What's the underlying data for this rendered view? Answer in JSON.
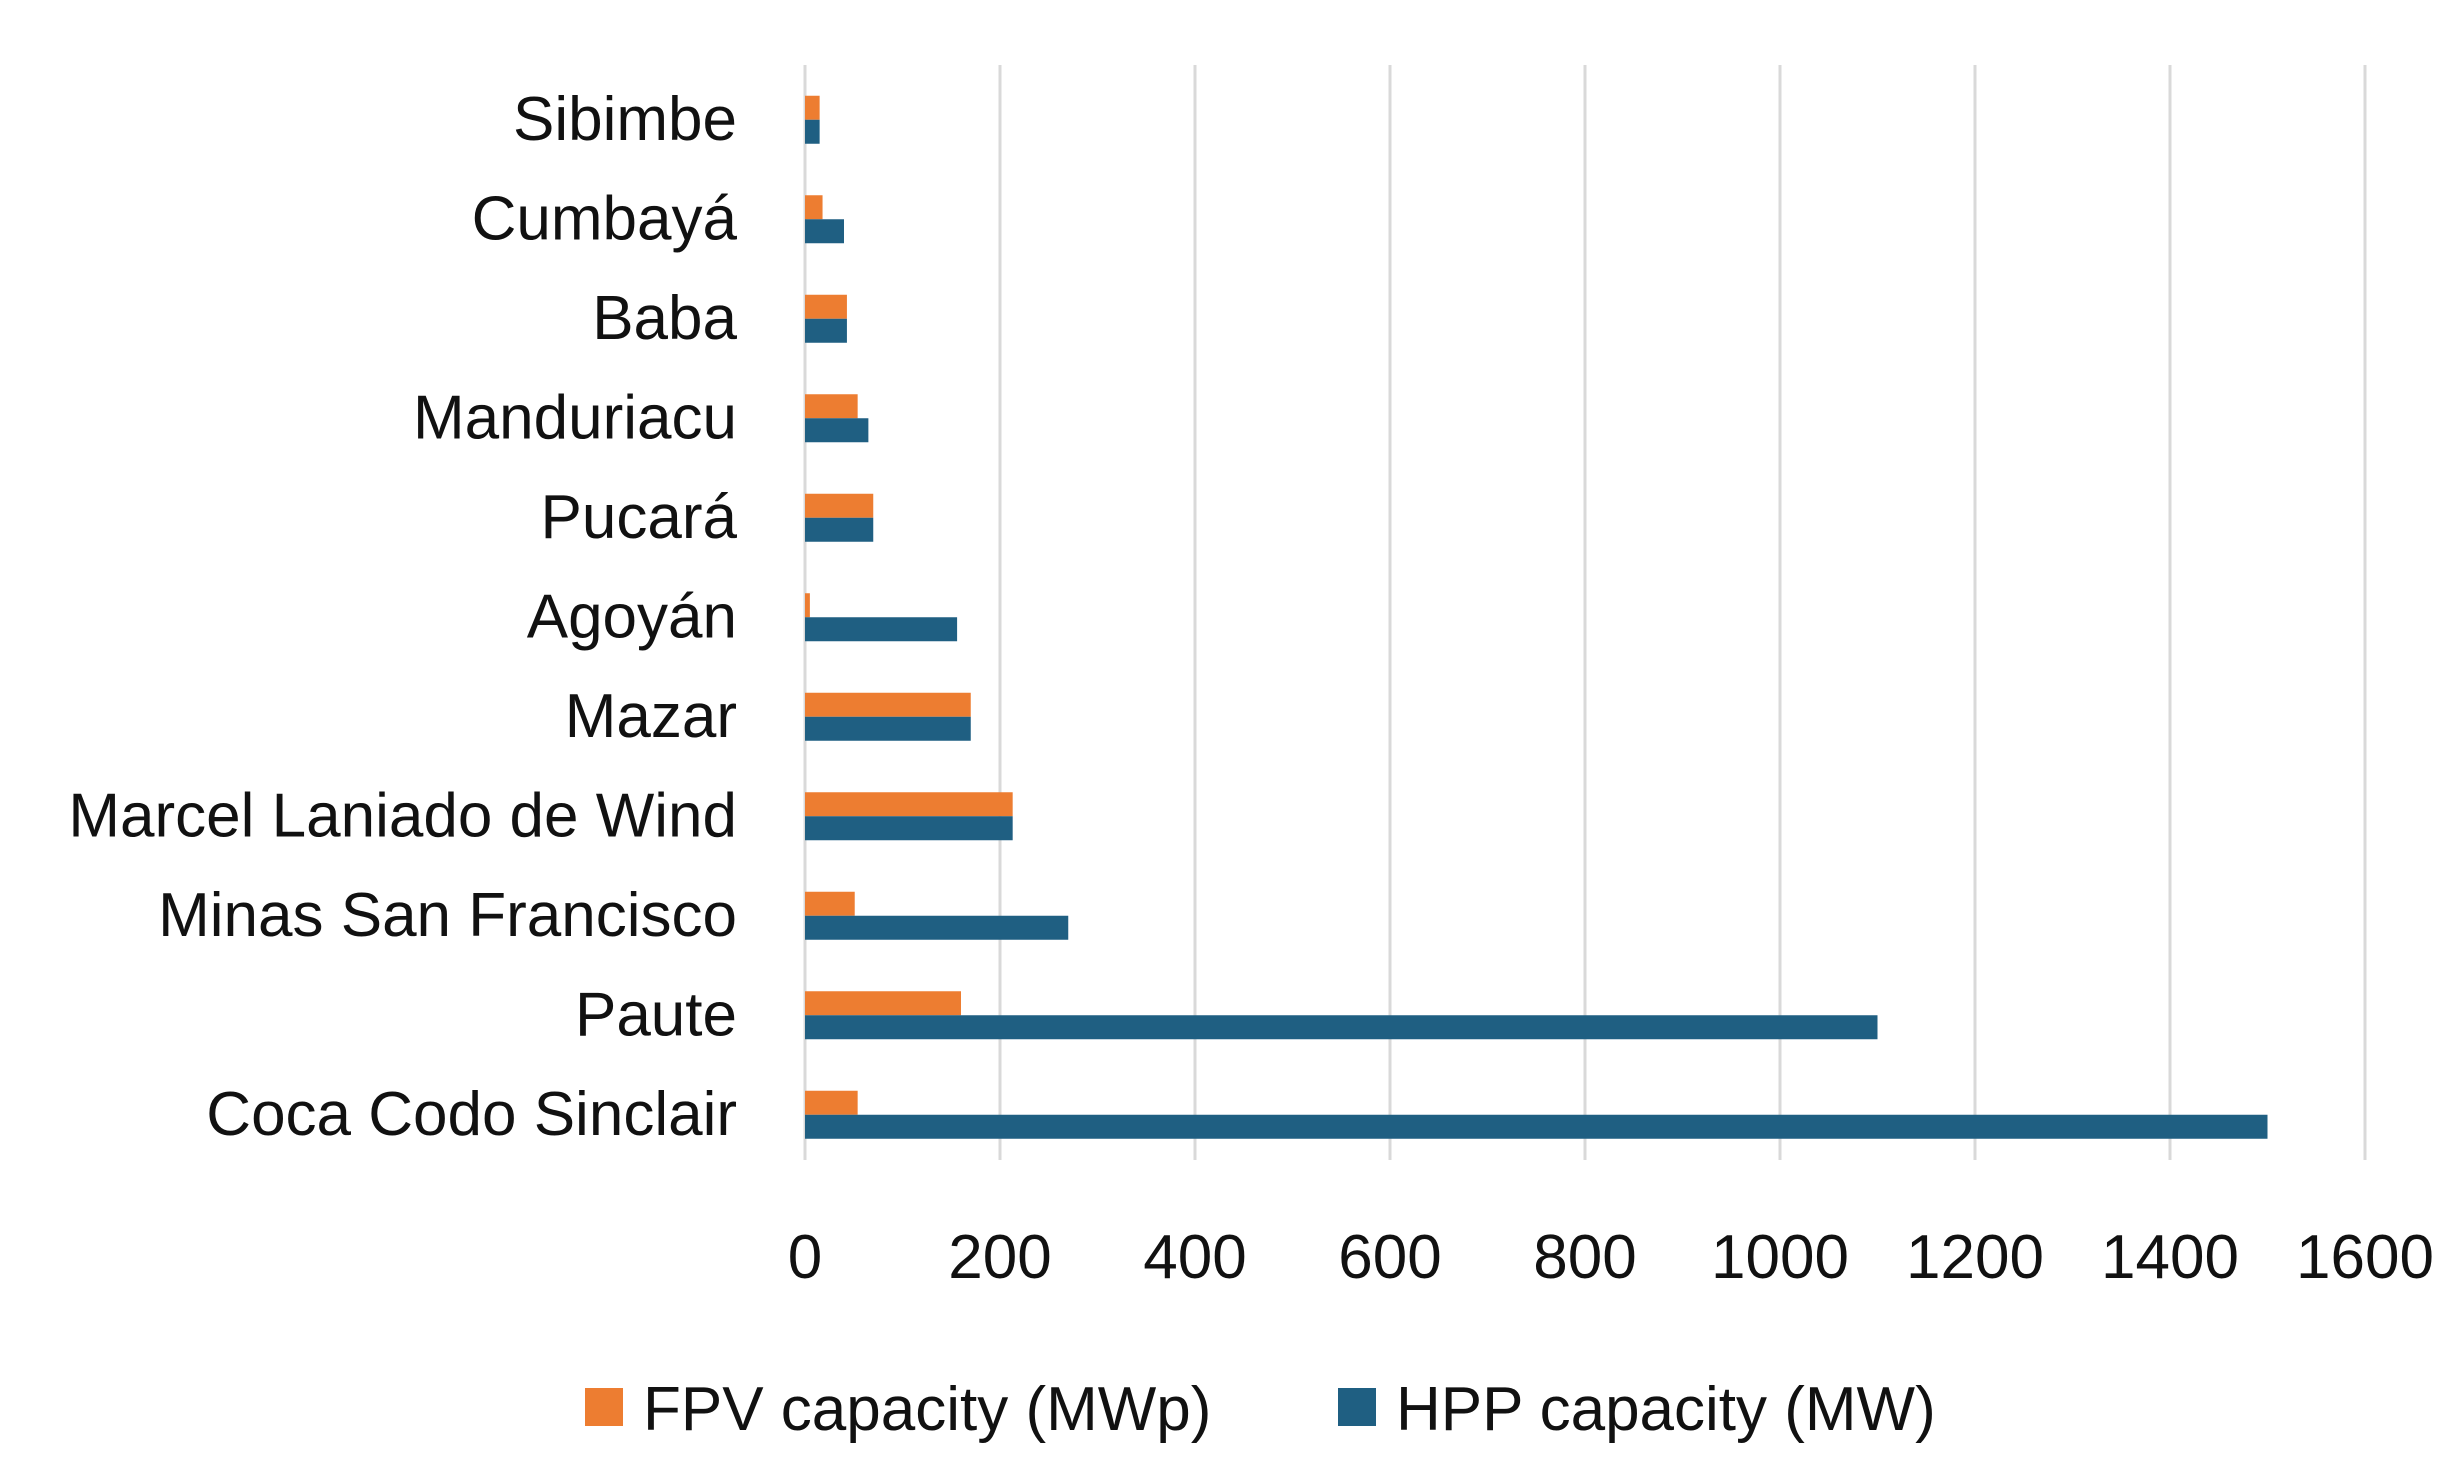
{
  "chart_data": {
    "type": "bar",
    "orientation": "horizontal",
    "title": "",
    "xlabel": "",
    "ylabel": "",
    "xlim": [
      0,
      1600
    ],
    "xticks": [
      0,
      200,
      400,
      600,
      800,
      1000,
      1200,
      1400,
      1600
    ],
    "xtick_labels": [
      "0",
      "200",
      "400",
      "600",
      "800",
      "1000",
      "1200",
      "1400",
      "1600"
    ],
    "grid": "vertical",
    "legend_position": "bottom",
    "categories": [
      "Sibimbe",
      "Cumbayá",
      "Baba",
      "Manduriacu",
      "Pucará",
      "Agoyán",
      "Mazar",
      "Marcel Laniado de Wind",
      "Minas San Francisco",
      "Paute",
      "Coca Codo Sinclair"
    ],
    "series": [
      {
        "name": "FPV capacity (MWp)",
        "color": "#ED7D31",
        "values": [
          15,
          18,
          43,
          54,
          70,
          5,
          170,
          213,
          51,
          160,
          54
        ]
      },
      {
        "name": "HPP capacity (MW)",
        "color": "#1F5F82",
        "values": [
          15,
          40,
          43,
          65,
          70,
          156,
          170,
          213,
          270,
          1100,
          1500
        ]
      }
    ]
  }
}
